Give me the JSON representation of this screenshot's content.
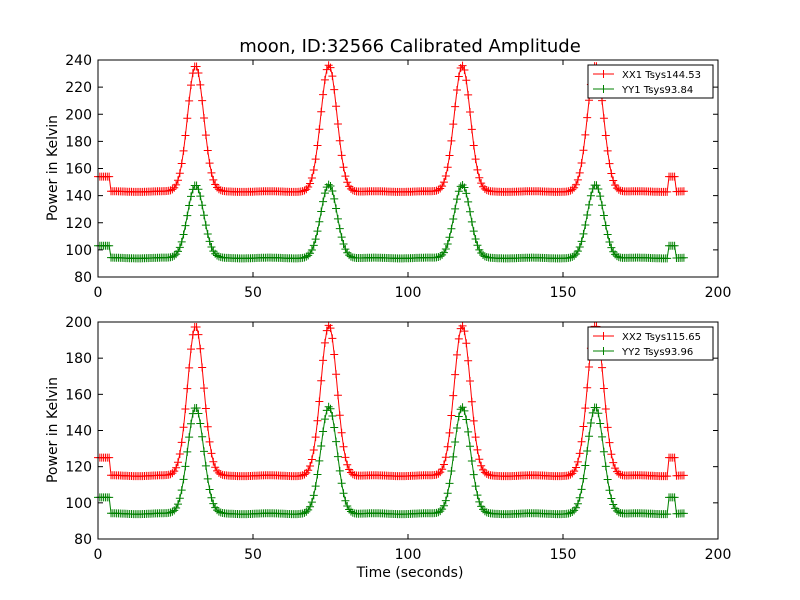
{
  "figure": {
    "title": "moon, ID:32566 Calibrated Amplitude",
    "xlabel": "Time (seconds)"
  },
  "chart_data": [
    {
      "type": "line",
      "title": "moon, ID:32566 Calibrated Amplitude",
      "xlabel": "",
      "ylabel": "Power in Kelvin",
      "xlim": [
        0,
        200
      ],
      "ylim": [
        80,
        240
      ],
      "xticks": [
        0,
        50,
        100,
        150,
        200
      ],
      "yticks": [
        80,
        100,
        120,
        140,
        160,
        180,
        200,
        220,
        240
      ],
      "legend_position": "top-right",
      "grid": false,
      "marker": "+",
      "peak_times": [
        31.5,
        74.5,
        117.5,
        160.5
      ],
      "series": [
        {
          "name": "XX1 Tsys144.53",
          "color": "#ff0000",
          "baseline": 143,
          "peak": 236,
          "segments": [
            {
              "x_start": 0,
              "x_end": 4,
              "value": 154
            },
            {
              "x_start": 184,
              "x_end": 186,
              "value": 154
            }
          ]
        },
        {
          "name": "YY1 Tsys93.84",
          "color": "#008000",
          "baseline": 94,
          "peak": 148,
          "segments": [
            {
              "x_start": 0,
              "x_end": 4,
              "value": 103
            },
            {
              "x_start": 184,
              "x_end": 186,
              "value": 103
            }
          ]
        }
      ]
    },
    {
      "type": "line",
      "title": "",
      "xlabel": "Time (seconds)",
      "ylabel": "Power in Kelvin",
      "xlim": [
        0,
        200
      ],
      "ylim": [
        80,
        200
      ],
      "xticks": [
        0,
        50,
        100,
        150,
        200
      ],
      "yticks": [
        80,
        100,
        120,
        140,
        160,
        180,
        200
      ],
      "legend_position": "top-right",
      "grid": false,
      "marker": "+",
      "peak_times": [
        31.5,
        74.5,
        117.5,
        160.5
      ],
      "series": [
        {
          "name": "XX2 Tsys115.65",
          "color": "#ff0000",
          "baseline": 115,
          "peak": 198,
          "segments": [
            {
              "x_start": 0,
              "x_end": 4,
              "value": 125
            },
            {
              "x_start": 184,
              "x_end": 186,
              "value": 125
            }
          ]
        },
        {
          "name": "YY2 Tsys93.96",
          "color": "#008000",
          "baseline": 94,
          "peak": 153,
          "segments": [
            {
              "x_start": 0,
              "x_end": 4,
              "value": 103
            },
            {
              "x_start": 184,
              "x_end": 186,
              "value": 103
            }
          ]
        }
      ]
    }
  ]
}
